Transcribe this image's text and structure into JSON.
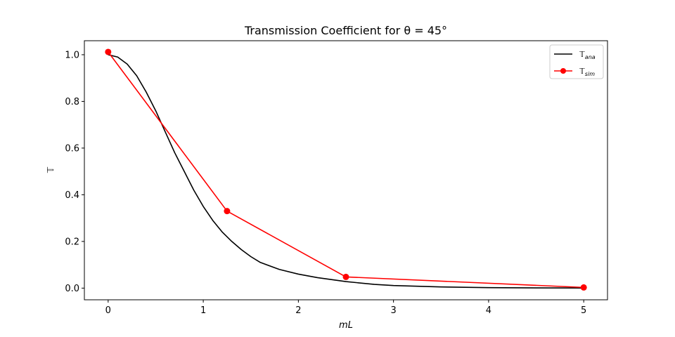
{
  "chart_data": {
    "type": "line",
    "title": "Transmission Coefficient for θ = 45°",
    "xlabel": "mL",
    "ylabel": "𝕋",
    "xlim": [
      -0.25,
      5.25
    ],
    "ylim": [
      -0.05,
      1.06
    ],
    "xticks": [
      "0",
      "1",
      "2",
      "3",
      "4",
      "5"
    ],
    "yticks": [
      "0.0",
      "0.2",
      "0.4",
      "0.6",
      "0.8",
      "1.0"
    ],
    "grid": false,
    "legend_placement": "top-right",
    "series": [
      {
        "name": "𝕋ana",
        "name_main": "𝕋",
        "name_sub": "ana",
        "color": "#000000",
        "marker": "none",
        "x": [
          0,
          0.1,
          0.2,
          0.3,
          0.4,
          0.5,
          0.6,
          0.7,
          0.8,
          0.9,
          1.0,
          1.1,
          1.2,
          1.3,
          1.4,
          1.5,
          1.6,
          1.8,
          2.0,
          2.2,
          2.5,
          2.8,
          3.0,
          3.5,
          4.0,
          4.5,
          5.0
        ],
        "y": [
          1.0,
          0.99,
          0.96,
          0.91,
          0.84,
          0.76,
          0.67,
          0.58,
          0.5,
          0.42,
          0.35,
          0.29,
          0.24,
          0.2,
          0.165,
          0.135,
          0.11,
          0.08,
          0.06,
          0.045,
          0.028,
          0.016,
          0.011,
          0.005,
          0.002,
          0.001,
          0.0005
        ]
      },
      {
        "name": "𝕋sim",
        "name_main": "𝕋",
        "name_sub": "sim",
        "color": "#ff0000",
        "marker": "circle",
        "x": [
          0,
          1.25,
          2.5,
          5.0
        ],
        "y": [
          1.012,
          0.33,
          0.048,
          0.003
        ]
      }
    ]
  }
}
